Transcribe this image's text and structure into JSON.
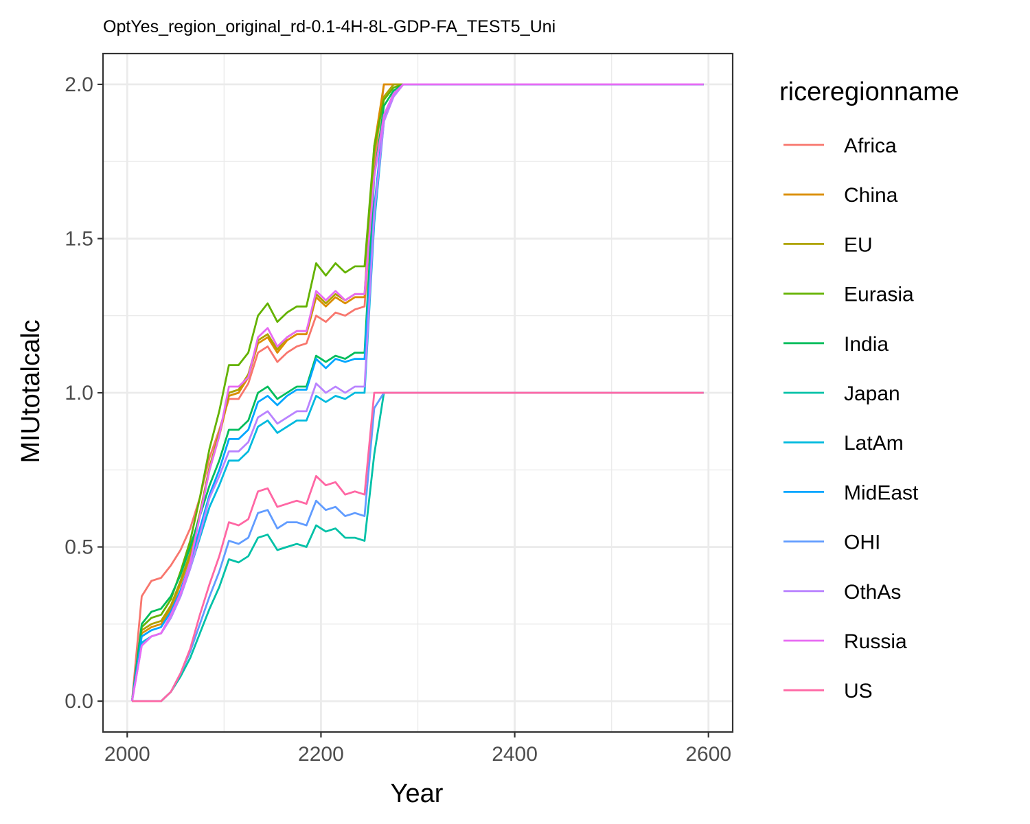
{
  "chart_data": {
    "type": "line",
    "title": "OptYes_region_original_rd-0.1-4H-8L-GDP-FA_TEST5_Uni",
    "xlabel": "Year",
    "ylabel": "MIUtotalcalc",
    "xlim": [
      1975,
      2625
    ],
    "ylim": [
      -0.1,
      2.1
    ],
    "x_ticks": [
      2000,
      2200,
      2400,
      2600
    ],
    "x_tick_labels": [
      "2000",
      "2200",
      "2400",
      "2600"
    ],
    "y_ticks": [
      0.0,
      0.5,
      1.0,
      1.5,
      2.0
    ],
    "y_tick_labels": [
      "0.0",
      "0.5",
      "1.0",
      "1.5",
      "2.0"
    ],
    "grid": true,
    "legend_title": "riceregionname",
    "legend_position": "right",
    "x": [
      2005,
      2015,
      2025,
      2035,
      2045,
      2055,
      2065,
      2075,
      2085,
      2095,
      2105,
      2115,
      2125,
      2135,
      2145,
      2155,
      2165,
      2175,
      2185,
      2195,
      2205,
      2215,
      2225,
      2235,
      2245,
      2255,
      2265,
      2275,
      2285,
      2295,
      2595
    ],
    "series": [
      {
        "name": "Africa",
        "color": "#F8766D",
        "values": [
          0,
          0.34,
          0.39,
          0.4,
          0.44,
          0.49,
          0.56,
          0.66,
          0.79,
          0.88,
          0.98,
          0.98,
          1.03,
          1.13,
          1.15,
          1.1,
          1.13,
          1.15,
          1.16,
          1.25,
          1.23,
          1.26,
          1.25,
          1.27,
          1.28,
          1.74,
          2.0,
          2.0,
          2.0,
          2.0,
          2.0
        ]
      },
      {
        "name": "China",
        "color": "#DB8E00",
        "values": [
          0,
          0.22,
          0.24,
          0.25,
          0.3,
          0.38,
          0.47,
          0.6,
          0.75,
          0.86,
          0.99,
          1.0,
          1.05,
          1.16,
          1.18,
          1.13,
          1.17,
          1.19,
          1.19,
          1.31,
          1.28,
          1.31,
          1.29,
          1.31,
          1.31,
          1.8,
          2.0,
          2.0,
          2.0,
          2.0,
          2.0
        ]
      },
      {
        "name": "EU",
        "color": "#AEA200",
        "values": [
          0,
          0.23,
          0.25,
          0.26,
          0.31,
          0.39,
          0.48,
          0.61,
          0.76,
          0.87,
          1.0,
          1.01,
          1.06,
          1.17,
          1.19,
          1.14,
          1.18,
          1.2,
          1.2,
          1.32,
          1.29,
          1.32,
          1.3,
          1.32,
          1.32,
          1.78,
          1.96,
          2.0,
          2.0,
          2.0,
          2.0
        ]
      },
      {
        "name": "Eurasia",
        "color": "#64B200",
        "values": [
          0,
          0.24,
          0.27,
          0.28,
          0.33,
          0.42,
          0.52,
          0.66,
          0.82,
          0.94,
          1.09,
          1.09,
          1.13,
          1.25,
          1.29,
          1.23,
          1.26,
          1.28,
          1.28,
          1.42,
          1.38,
          1.42,
          1.39,
          1.41,
          1.41,
          1.8,
          1.95,
          1.99,
          2.0,
          2.0,
          2.0
        ]
      },
      {
        "name": "India",
        "color": "#00BD5C",
        "values": [
          0,
          0.25,
          0.29,
          0.3,
          0.34,
          0.41,
          0.5,
          0.6,
          0.7,
          0.78,
          0.88,
          0.88,
          0.91,
          1.0,
          1.02,
          0.98,
          1.0,
          1.02,
          1.02,
          1.12,
          1.1,
          1.12,
          1.11,
          1.13,
          1.13,
          1.7,
          1.93,
          1.98,
          2.0,
          2.0,
          2.0
        ]
      },
      {
        "name": "Japan",
        "color": "#00C1A7",
        "values": [
          0,
          0,
          0,
          0,
          0.03,
          0.08,
          0.14,
          0.22,
          0.3,
          0.37,
          0.46,
          0.45,
          0.47,
          0.53,
          0.54,
          0.49,
          0.5,
          0.51,
          0.5,
          0.57,
          0.55,
          0.56,
          0.53,
          0.53,
          0.52,
          0.8,
          1.0,
          1.0,
          1.0,
          1.0,
          1.0
        ]
      },
      {
        "name": "LatAm",
        "color": "#00BADE",
        "values": [
          0,
          0.19,
          0.21,
          0.22,
          0.27,
          0.34,
          0.43,
          0.53,
          0.63,
          0.7,
          0.78,
          0.78,
          0.81,
          0.89,
          0.91,
          0.87,
          0.89,
          0.91,
          0.91,
          0.99,
          0.97,
          0.99,
          0.98,
          1.0,
          1.0,
          1.55,
          1.88,
          1.97,
          2.0,
          2.0,
          2.0
        ]
      },
      {
        "name": "MidEast",
        "color": "#00A6FF",
        "values": [
          0,
          0.21,
          0.23,
          0.24,
          0.29,
          0.36,
          0.45,
          0.56,
          0.67,
          0.75,
          0.85,
          0.85,
          0.88,
          0.97,
          0.99,
          0.96,
          0.99,
          1.01,
          1.01,
          1.11,
          1.08,
          1.11,
          1.1,
          1.11,
          1.11,
          1.6,
          1.9,
          1.97,
          2.0,
          2.0,
          2.0
        ]
      },
      {
        "name": "OHI",
        "color": "#619CFF",
        "values": [
          0,
          0,
          0,
          0,
          0.03,
          0.09,
          0.16,
          0.25,
          0.34,
          0.42,
          0.52,
          0.51,
          0.53,
          0.61,
          0.62,
          0.56,
          0.58,
          0.58,
          0.57,
          0.65,
          0.62,
          0.63,
          0.6,
          0.61,
          0.6,
          0.95,
          1.0,
          1.0,
          1.0,
          1.0,
          1.0
        ]
      },
      {
        "name": "OthAs",
        "color": "#B983FF",
        "values": [
          0,
          0.18,
          0.21,
          0.22,
          0.27,
          0.34,
          0.43,
          0.54,
          0.66,
          0.73,
          0.81,
          0.81,
          0.84,
          0.92,
          0.94,
          0.9,
          0.92,
          0.94,
          0.94,
          1.03,
          1.0,
          1.02,
          1.0,
          1.02,
          1.02,
          1.58,
          1.88,
          1.96,
          2.0,
          2.0,
          2.0
        ]
      },
      {
        "name": "Russia",
        "color": "#E76BF3",
        "values": [
          0,
          0.18,
          0.21,
          0.22,
          0.28,
          0.35,
          0.45,
          0.6,
          0.75,
          0.86,
          1.02,
          1.02,
          1.05,
          1.18,
          1.21,
          1.15,
          1.18,
          1.2,
          1.2,
          1.33,
          1.3,
          1.33,
          1.3,
          1.32,
          1.32,
          1.7,
          1.9,
          1.97,
          2.0,
          2.0,
          2.0
        ]
      },
      {
        "name": "US",
        "color": "#FF67A4",
        "values": [
          0,
          0,
          0,
          0,
          0.03,
          0.09,
          0.17,
          0.28,
          0.38,
          0.47,
          0.58,
          0.57,
          0.59,
          0.68,
          0.69,
          0.63,
          0.64,
          0.65,
          0.64,
          0.73,
          0.7,
          0.71,
          0.67,
          0.68,
          0.67,
          1.0,
          1.0,
          1.0,
          1.0,
          1.0,
          1.0
        ]
      }
    ]
  }
}
